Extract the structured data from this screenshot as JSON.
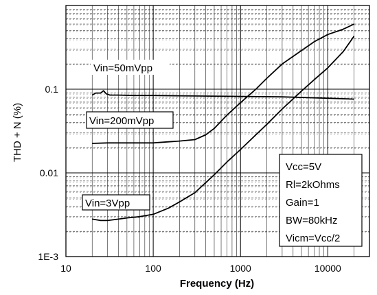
{
  "chart_data": {
    "type": "line",
    "title": "",
    "xlabel": "Frequency (Hz)",
    "ylabel": "THD + N (%)",
    "x_scale": "log",
    "y_scale": "log",
    "xlim": [
      10,
      30000
    ],
    "ylim": [
      0.001,
      1
    ],
    "grid": true,
    "x_ticks": [
      {
        "value": 10,
        "label": "10"
      },
      {
        "value": 100,
        "label": "100"
      },
      {
        "value": 1000,
        "label": "1000"
      },
      {
        "value": 10000,
        "label": "10000"
      }
    ],
    "y_ticks": [
      {
        "value": 0.001,
        "label": "1E-3"
      },
      {
        "value": 0.01,
        "label": "0.01"
      },
      {
        "value": 0.1,
        "label": "0.1"
      }
    ],
    "series": [
      {
        "name": "Vin=50mVpp",
        "x": [
          20,
          22,
          25,
          27,
          29,
          32,
          40,
          60,
          100,
          300,
          1000,
          3000,
          10000,
          20000
        ],
        "y": [
          0.085,
          0.09,
          0.09,
          0.096,
          0.088,
          0.085,
          0.085,
          0.084,
          0.084,
          0.083,
          0.082,
          0.081,
          0.078,
          0.076
        ]
      },
      {
        "name": "Vin=200mVpp",
        "x": [
          20,
          30,
          50,
          100,
          150,
          200,
          300,
          400,
          500,
          700,
          1000,
          1500,
          2000,
          3000,
          5000,
          7000,
          10000,
          15000,
          20000
        ],
        "y": [
          0.0225,
          0.0228,
          0.0228,
          0.0228,
          0.0235,
          0.024,
          0.025,
          0.0285,
          0.034,
          0.049,
          0.069,
          0.1,
          0.135,
          0.2,
          0.29,
          0.37,
          0.45,
          0.52,
          0.6
        ]
      },
      {
        "name": "Vin=3Vpp",
        "x": [
          20,
          25,
          30,
          40,
          50,
          70,
          100,
          150,
          200,
          300,
          500,
          700,
          1000,
          2000,
          3000,
          5000,
          7000,
          10000,
          15000,
          20000
        ],
        "y": [
          0.0028,
          0.0027,
          0.0027,
          0.0028,
          0.0029,
          0.003,
          0.0032,
          0.0038,
          0.0045,
          0.0058,
          0.0095,
          0.0135,
          0.019,
          0.038,
          0.058,
          0.095,
          0.13,
          0.18,
          0.28,
          0.43
        ]
      }
    ],
    "annotations": [
      {
        "text": "Vin=50mVpp",
        "series": 0
      },
      {
        "text": "Vin=200mVpp",
        "series": 1
      },
      {
        "text": "Vin=3Vpp",
        "series": 2
      }
    ],
    "conditions": [
      "Vcc=5V",
      "Rl=2kOhms",
      "Gain=1",
      "BW=80kHz",
      "Vicm=Vcc/2"
    ]
  }
}
